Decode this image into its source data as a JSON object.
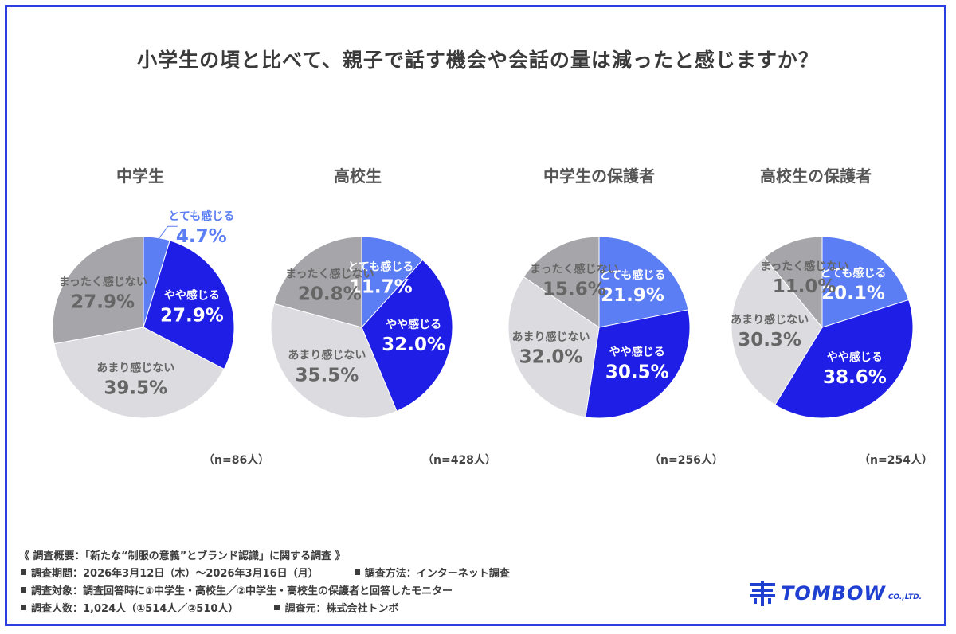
{
  "title": "小学生の頃と比べて、親子で話す機会や会話の量は減ったと感じますか？",
  "colors": {
    "totemo": "#5b7ef5",
    "yaya": "#1e1ee6",
    "amari": "#dcdce0",
    "mattaku": "#a6a6aa",
    "frame": "#2b3ee0",
    "brand": "#1f3fd0"
  },
  "chart_data": [
    {
      "type": "pie",
      "title": "中学生",
      "n": "（n=86人）",
      "slices": [
        {
          "label": "とても感じる",
          "value": 4.7,
          "display": "4.7%"
        },
        {
          "label": "やや感じる",
          "value": 27.9,
          "display": "27.9%"
        },
        {
          "label": "あまり感じない",
          "value": 39.5,
          "display": "39.5%"
        },
        {
          "label": "まったく感じない",
          "value": 27.9,
          "display": "27.9%"
        }
      ]
    },
    {
      "type": "pie",
      "title": "高校生",
      "n": "（n=428人）",
      "slices": [
        {
          "label": "とても感じる",
          "value": 11.7,
          "display": "11.7%"
        },
        {
          "label": "やや感じる",
          "value": 32.0,
          "display": "32.0%"
        },
        {
          "label": "あまり感じない",
          "value": 35.5,
          "display": "35.5%"
        },
        {
          "label": "まったく感じない",
          "value": 20.8,
          "display": "20.8%"
        }
      ]
    },
    {
      "type": "pie",
      "title": "中学生の保護者",
      "n": "（n=256人）",
      "slices": [
        {
          "label": "とても感じる",
          "value": 21.9,
          "display": "21.9%"
        },
        {
          "label": "やや感じる",
          "value": 30.5,
          "display": "30.5%"
        },
        {
          "label": "あまり感じない",
          "value": 32.0,
          "display": "32.0%"
        },
        {
          "label": "まったく感じない",
          "value": 15.6,
          "display": "15.6%"
        }
      ]
    },
    {
      "type": "pie",
      "title": "高校生の保護者",
      "n": "（n=254人）",
      "slices": [
        {
          "label": "とても感じる",
          "value": 20.1,
          "display": "20.1%"
        },
        {
          "label": "やや感じる",
          "value": 38.6,
          "display": "38.6%"
        },
        {
          "label": "あまり感じない",
          "value": 30.3,
          "display": "30.3%"
        },
        {
          "label": "まったく感じない",
          "value": 11.0,
          "display": "11.0%"
        }
      ]
    }
  ],
  "footer": {
    "heading": "《 調査概要：「新たな“制服の意義”とブランド認識」に関する調査 》",
    "period": "調査期間：2026年3月12日（木）～2026年3月16日（月）",
    "method": "調査方法：インターネット調査",
    "target": "調査対象：調査回答時に①中学生・高校生／②中学生・高校生の保護者と回答したモニター",
    "count": "調査人数：1,024人（①514人／②510人）",
    "source": "調査元：株式会社トンボ"
  },
  "logo": {
    "name": "TOMBOW",
    "suffix": "CO.,LTD.",
    "icon": "tombow-logo-icon"
  }
}
